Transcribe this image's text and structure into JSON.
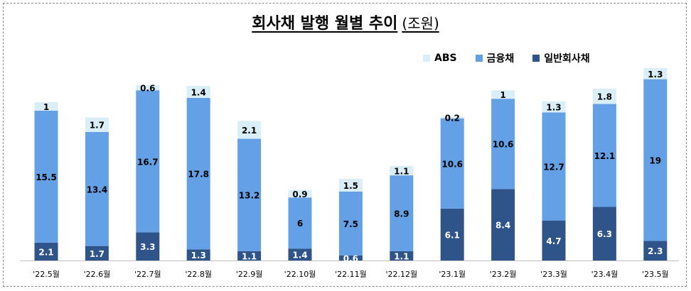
{
  "chart_data": {
    "type": "bar",
    "stacked": true,
    "title": "회사채 발행 월별 추이",
    "subtitle": "(조원)",
    "categories": [
      "'22.5월",
      "'22.6월",
      "'22.7월",
      "'22.8월",
      "'22.9월",
      "'22.10월",
      "'22.11월",
      "'22.12월",
      "'23.1월",
      "'23.2월",
      "'23.3월",
      "'23.4월",
      "'23.5월"
    ],
    "series": [
      {
        "name": "일반회사채",
        "color": "#2e548a",
        "label_color": "#ffffff",
        "values": [
          2.1,
          1.7,
          3.3,
          1.3,
          1.1,
          1.4,
          0.6,
          1.1,
          6.1,
          8.4,
          4.7,
          6.3,
          2.3
        ]
      },
      {
        "name": "금융채",
        "color": "#64a0e6",
        "label_color": "#000000",
        "values": [
          15.5,
          13.4,
          16.7,
          17.8,
          13.2,
          6,
          7.5,
          8.9,
          10.6,
          10.6,
          12.7,
          12.1,
          19
        ]
      },
      {
        "name": "ABS",
        "color": "#daeef8",
        "label_color": "#000000",
        "values": [
          1,
          1.7,
          0.6,
          1.4,
          2.1,
          0.9,
          1.5,
          1.1,
          0.2,
          1,
          1.3,
          1.8,
          1.3
        ]
      }
    ],
    "legend_order": [
      "ABS",
      "금융채",
      "일반회사채"
    ],
    "legend_position": "top-right",
    "ylim": [
      0,
      22.6
    ],
    "grid": false
  }
}
